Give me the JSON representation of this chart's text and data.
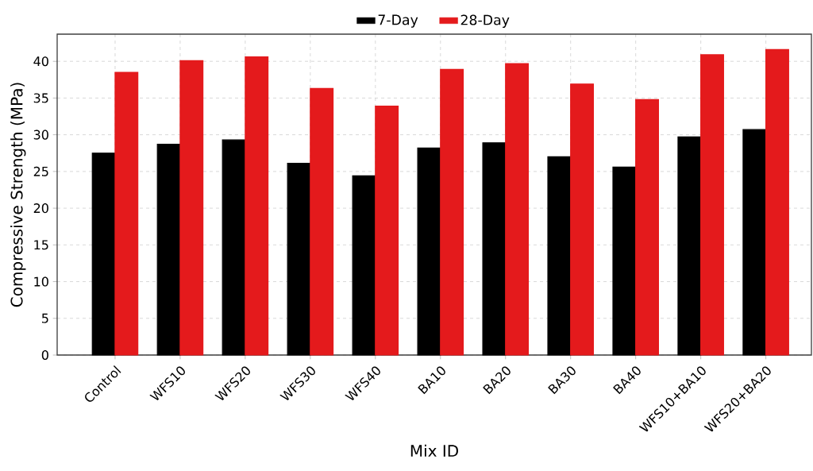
{
  "chart_data": {
    "type": "bar",
    "xlabel": "Mix ID",
    "ylabel": "Compressive Strength (MPa)",
    "categories": [
      "Control",
      "WFS10",
      "WFS20",
      "WFS30",
      "WFS40",
      "BA10",
      "BA20",
      "BA30",
      "BA40",
      "WFS10+BA10",
      "WFS20+BA20"
    ],
    "series": [
      {
        "name": "7-Day",
        "color": "#000000",
        "values": [
          27.5,
          28.7,
          29.3,
          26.1,
          24.4,
          28.2,
          28.9,
          27.0,
          25.6,
          29.7,
          30.7
        ]
      },
      {
        "name": "28-Day",
        "color": "#e41a1c",
        "values": [
          38.5,
          40.1,
          40.6,
          36.3,
          33.9,
          38.9,
          39.7,
          36.9,
          34.8,
          40.9,
          41.6
        ]
      }
    ],
    "ylim": [
      0,
      43.7
    ],
    "yticks": [
      0,
      5,
      10,
      15,
      20,
      25,
      30,
      35,
      40
    ],
    "grid": true,
    "legend": "top"
  }
}
